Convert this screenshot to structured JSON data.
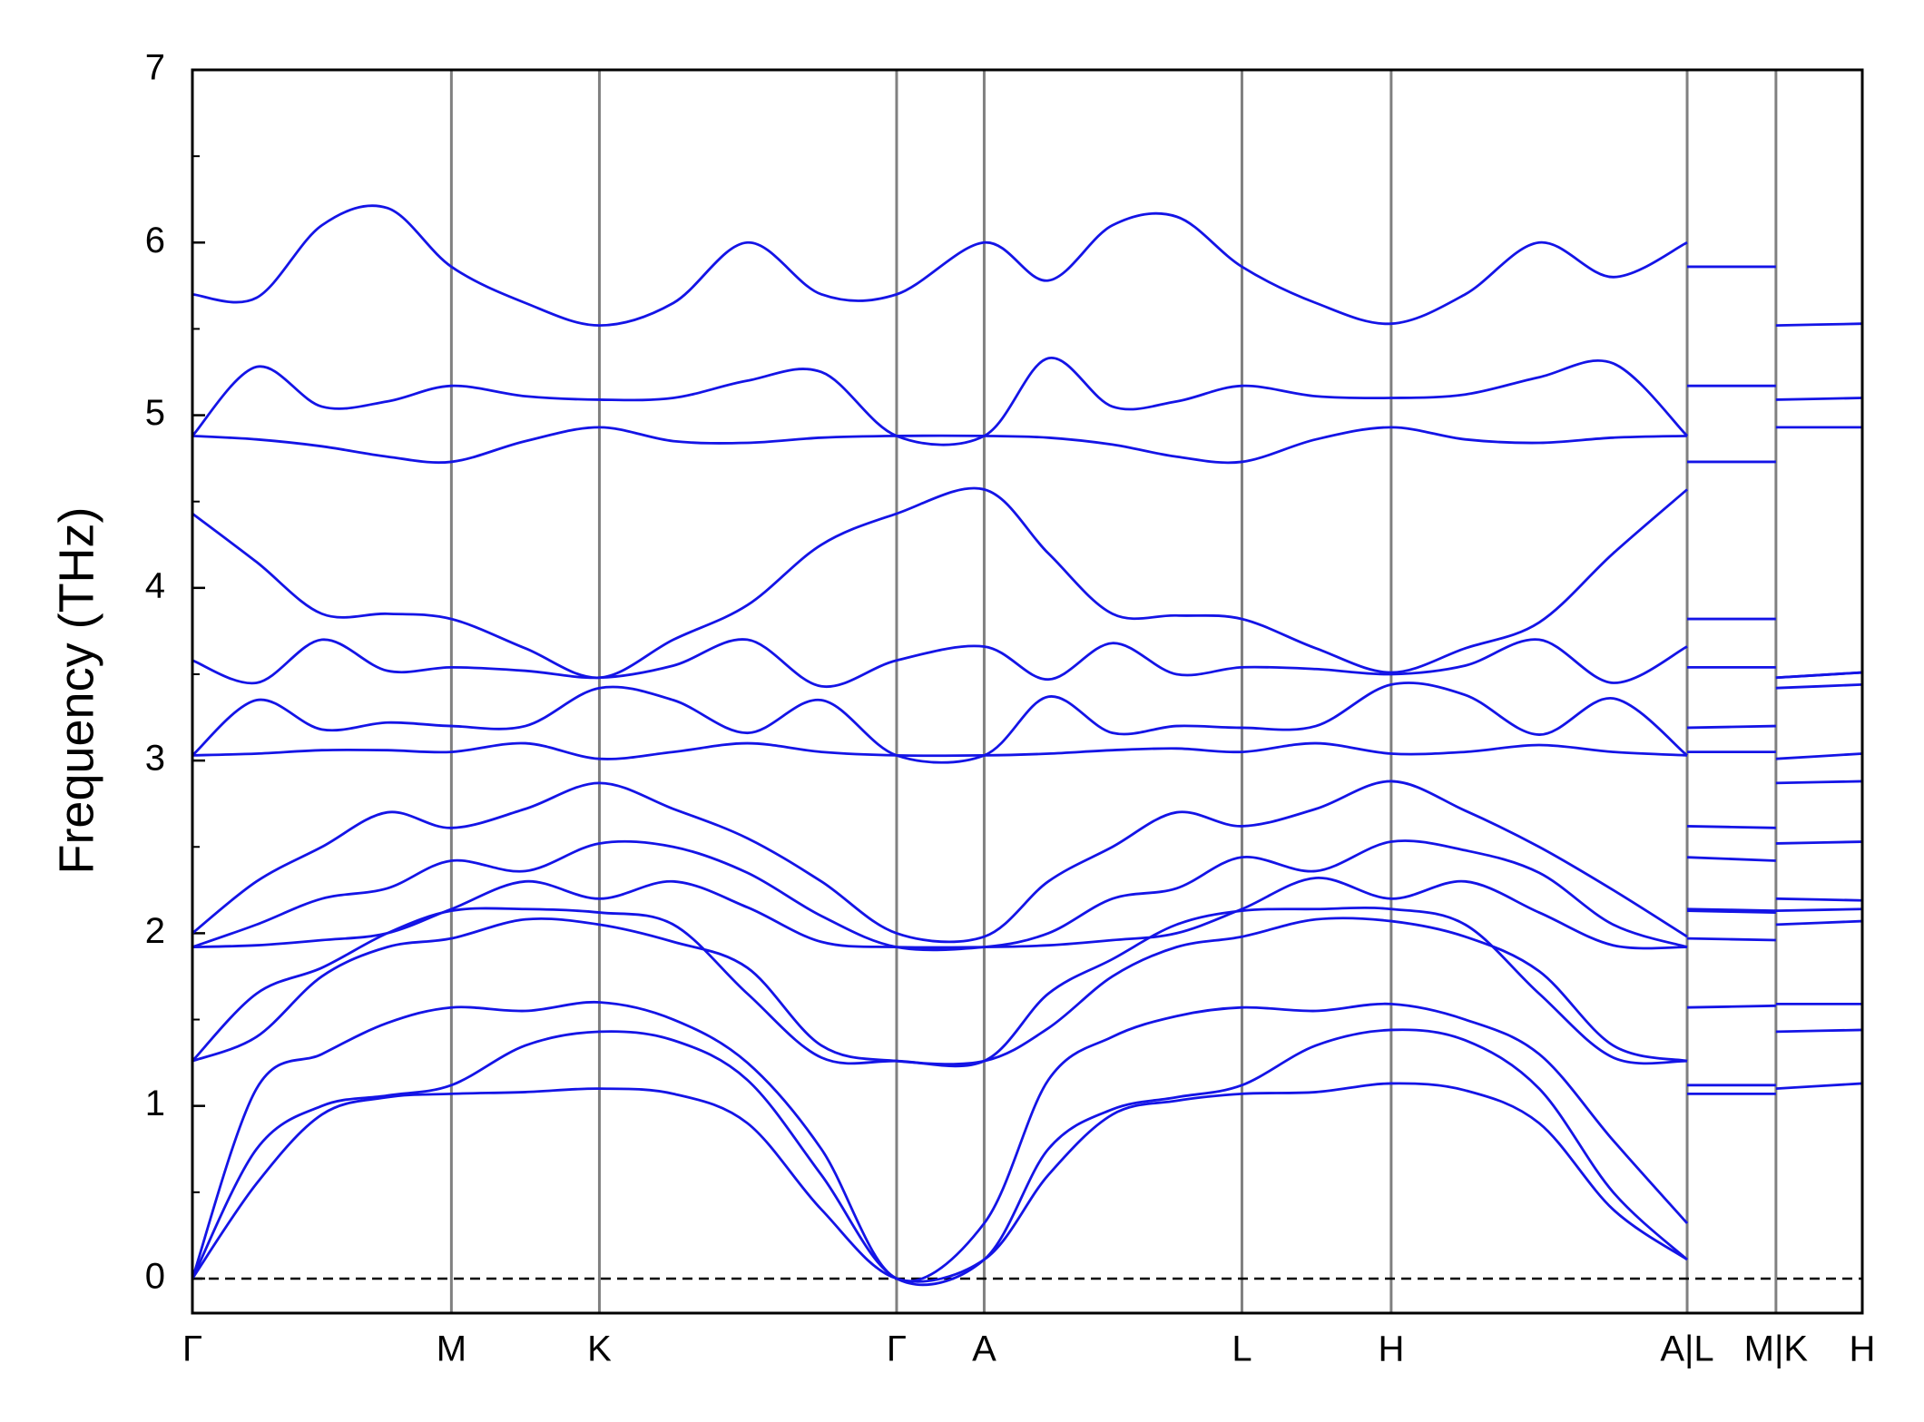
{
  "chart_data": {
    "type": "line",
    "y_label": "Frequency (THz)",
    "color": "#1414e6",
    "x": [
      0,
      52,
      105,
      158,
      210,
      270,
      330,
      390,
      450,
      510,
      571,
      642,
      694,
      746,
      798,
      851,
      911,
      972,
      1032,
      1092,
      1152,
      1212,
      1212,
      1212,
      1284,
      1284,
      1284,
      1354
    ],
    "xlim": [
      0,
      1354
    ],
    "xticks": [
      {
        "value": 0,
        "label": "Γ"
      },
      {
        "value": 210,
        "label": "M"
      },
      {
        "value": 330,
        "label": "K"
      },
      {
        "value": 571,
        "label": "Γ"
      },
      {
        "value": 642,
        "label": "A"
      },
      {
        "value": 851,
        "label": "L"
      },
      {
        "value": 972,
        "label": "H"
      },
      {
        "value": 1212,
        "label": "A|L"
      },
      {
        "value": 1284,
        "label": "M|K"
      },
      {
        "value": 1354,
        "label": "H"
      }
    ],
    "ylim": [
      -0.2,
      7
    ],
    "yticks": [
      0,
      1,
      2,
      3,
      4,
      5,
      6,
      7
    ],
    "yminorticks": [
      0.5,
      1.5,
      2.5,
      3.5,
      4.5,
      5.5,
      6.5
    ],
    "reference_line": 0,
    "series": [
      {
        "values": [
          0,
          0.55,
          0.95,
          1.05,
          1.07,
          1.08,
          1.1,
          1.07,
          0.9,
          0.4,
          0,
          0.11,
          0.6,
          0.95,
          1.03,
          1.07,
          1.08,
          1.13,
          1.09,
          0.9,
          0.4,
          0.11,
          null,
          1.07,
          1.07,
          null,
          1.1,
          1.13
        ]
      },
      {
        "values": [
          0,
          0.75,
          1.0,
          1.06,
          1.12,
          1.35,
          1.43,
          1.38,
          1.15,
          0.6,
          0,
          0.11,
          0.75,
          0.98,
          1.05,
          1.12,
          1.35,
          1.44,
          1.38,
          1.1,
          0.5,
          0.11,
          null,
          1.12,
          1.12,
          null,
          1.43,
          1.44
        ]
      },
      {
        "values": [
          0,
          1.1,
          1.3,
          1.48,
          1.57,
          1.55,
          1.6,
          1.5,
          1.25,
          0.75,
          0,
          0.32,
          1.15,
          1.4,
          1.52,
          1.57,
          1.55,
          1.59,
          1.5,
          1.3,
          0.8,
          0.32,
          null,
          1.57,
          1.58,
          null,
          1.59,
          1.59
        ]
      },
      {
        "values": [
          1.26,
          1.4,
          1.75,
          1.92,
          1.97,
          2.08,
          2.05,
          1.95,
          1.8,
          1.35,
          1.26,
          1.26,
          1.45,
          1.75,
          1.92,
          1.98,
          2.08,
          2.07,
          1.98,
          1.78,
          1.35,
          1.26,
          null,
          1.97,
          1.96,
          null,
          2.05,
          2.07
        ]
      },
      {
        "values": [
          1.26,
          1.65,
          1.8,
          2.0,
          2.13,
          2.14,
          2.12,
          2.05,
          1.65,
          1.28,
          1.26,
          1.26,
          1.65,
          1.85,
          2.05,
          2.13,
          2.14,
          2.14,
          2.05,
          1.65,
          1.28,
          1.26,
          null,
          2.13,
          2.12,
          null,
          2.13,
          2.14
        ]
      },
      {
        "values": [
          1.92,
          1.93,
          1.96,
          2.0,
          2.14,
          2.3,
          2.2,
          2.3,
          2.15,
          1.95,
          1.92,
          1.92,
          1.93,
          1.96,
          2.0,
          2.14,
          2.32,
          2.2,
          2.3,
          2.12,
          1.93,
          1.92,
          null,
          2.14,
          2.13,
          null,
          2.2,
          2.19
        ]
      },
      {
        "values": [
          1.92,
          2.05,
          2.2,
          2.26,
          2.42,
          2.36,
          2.52,
          2.5,
          2.35,
          2.1,
          1.92,
          1.92,
          2.0,
          2.2,
          2.26,
          2.44,
          2.36,
          2.53,
          2.48,
          2.35,
          2.05,
          1.92,
          null,
          2.44,
          2.42,
          null,
          2.52,
          2.53
        ]
      },
      {
        "values": [
          2.0,
          2.3,
          2.5,
          2.7,
          2.61,
          2.72,
          2.87,
          2.72,
          2.55,
          2.3,
          2.0,
          1.98,
          2.3,
          2.5,
          2.7,
          2.62,
          2.72,
          2.88,
          2.71,
          2.5,
          2.25,
          1.98,
          null,
          2.62,
          2.61,
          null,
          2.87,
          2.88
        ]
      },
      {
        "values": [
          3.03,
          3.04,
          3.06,
          3.06,
          3.05,
          3.1,
          3.01,
          3.05,
          3.1,
          3.05,
          3.03,
          3.03,
          3.04,
          3.06,
          3.07,
          3.05,
          3.1,
          3.04,
          3.05,
          3.09,
          3.05,
          3.03,
          null,
          3.05,
          3.05,
          null,
          3.01,
          3.04
        ]
      },
      {
        "values": [
          3.03,
          3.35,
          3.18,
          3.22,
          3.2,
          3.2,
          3.42,
          3.35,
          3.16,
          3.35,
          3.03,
          3.03,
          3.37,
          3.16,
          3.2,
          3.19,
          3.2,
          3.44,
          3.38,
          3.15,
          3.36,
          3.03,
          null,
          3.19,
          3.2,
          null,
          3.42,
          3.44
        ]
      },
      {
        "values": [
          3.58,
          3.45,
          3.7,
          3.52,
          3.54,
          3.52,
          3.48,
          3.55,
          3.7,
          3.43,
          3.58,
          3.66,
          3.47,
          3.68,
          3.5,
          3.54,
          3.53,
          3.5,
          3.55,
          3.7,
          3.45,
          3.66,
          null,
          3.54,
          3.54,
          null,
          3.48,
          3.51
        ]
      },
      {
        "values": [
          4.43,
          4.15,
          3.85,
          3.85,
          3.82,
          3.65,
          3.48,
          3.7,
          3.9,
          4.25,
          4.43,
          4.57,
          4.2,
          3.85,
          3.84,
          3.82,
          3.65,
          3.51,
          3.65,
          3.8,
          4.2,
          4.57,
          null,
          3.82,
          3.82,
          null,
          3.48,
          3.51
        ]
      },
      {
        "values": [
          4.88,
          4.86,
          4.82,
          4.76,
          4.73,
          4.85,
          4.93,
          4.85,
          4.84,
          4.87,
          4.88,
          4.88,
          4.87,
          4.83,
          4.76,
          4.73,
          4.86,
          4.93,
          4.86,
          4.84,
          4.87,
          4.88,
          null,
          4.73,
          4.73,
          null,
          4.93,
          4.93
        ]
      },
      {
        "values": [
          4.88,
          5.28,
          5.05,
          5.08,
          5.17,
          5.11,
          5.09,
          5.1,
          5.2,
          5.25,
          4.88,
          4.88,
          5.33,
          5.05,
          5.08,
          5.17,
          5.11,
          5.1,
          5.12,
          5.22,
          5.3,
          4.88,
          null,
          5.17,
          5.17,
          null,
          5.09,
          5.1
        ]
      },
      {
        "values": [
          5.7,
          5.68,
          6.1,
          6.2,
          5.86,
          5.65,
          5.52,
          5.65,
          6.0,
          5.7,
          5.7,
          6.0,
          5.78,
          6.1,
          6.15,
          5.86,
          5.65,
          5.53,
          5.7,
          6.0,
          5.8,
          6.0,
          null,
          5.86,
          5.86,
          null,
          5.52,
          5.53
        ]
      }
    ]
  }
}
